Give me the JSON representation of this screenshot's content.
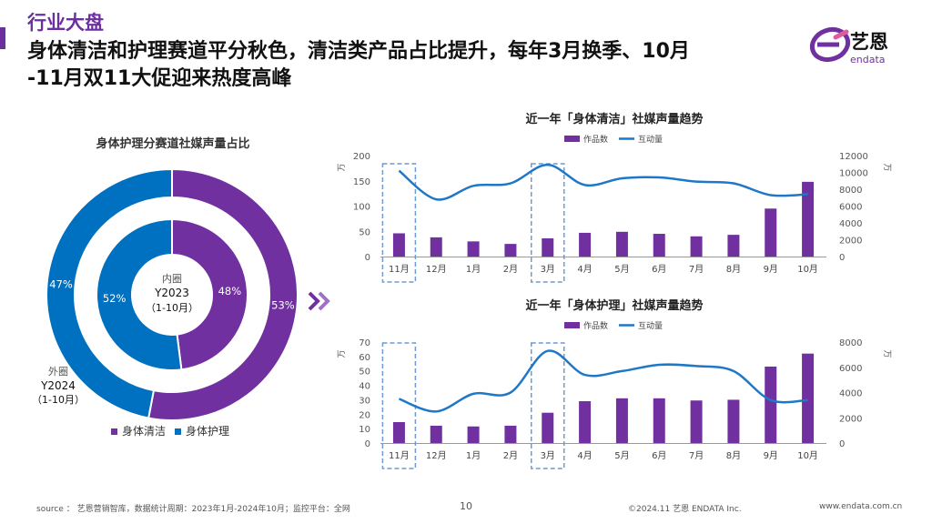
{
  "header": {
    "section_title": "行业大盘",
    "headline_line1": "身体清洁和护理赛道平分秋色，清洁类产品占比提升，每年3月换季、10月",
    "headline_line2": "-11月双11大促迎来热度高峰",
    "logo_text": "艺恩",
    "logo_subtext": "endata"
  },
  "donut": {
    "title": "身体护理分赛道社媒声量占比",
    "center_line1": "内圈",
    "center_line2": "Y2023",
    "center_line3": "（1-10月）",
    "outer_label_line1": "外圈",
    "outer_label_line2": "Y2024",
    "outer_label_line3": "（1-10月）",
    "legend": [
      {
        "label": "身体清洁",
        "color": "#7030a0"
      },
      {
        "label": "身体护理",
        "color": "#0070c0"
      }
    ]
  },
  "chart_data": [
    {
      "type": "pie",
      "ring": "outer",
      "period": "Y2024（1-10月）",
      "slices": [
        {
          "name": "身体清洁",
          "value": 53,
          "label": "53%",
          "color": "#7030a0"
        },
        {
          "name": "身体护理",
          "value": 47,
          "label": "47%",
          "color": "#0070c0"
        }
      ]
    },
    {
      "type": "pie",
      "ring": "inner",
      "period": "Y2023（1-10月）",
      "slices": [
        {
          "name": "身体清洁",
          "value": 48,
          "label": "48%",
          "color": "#7030a0"
        },
        {
          "name": "身体护理",
          "value": 52,
          "label": "52%",
          "color": "#0070c0"
        }
      ]
    },
    {
      "type": "bar",
      "title": "近一年「身体清洁」社媒声量趋势",
      "categories": [
        "11月",
        "12月",
        "1月",
        "2月",
        "3月",
        "4月",
        "5月",
        "6月",
        "7月",
        "8月",
        "9月",
        "10月"
      ],
      "left_unit": "万",
      "right_unit": "万",
      "left_ticks": [
        0,
        50,
        100,
        150,
        200
      ],
      "right_ticks": [
        0,
        2000,
        4000,
        6000,
        8000,
        10000,
        12000
      ],
      "ylim_left": [
        0,
        200
      ],
      "ylim_right": [
        0,
        12000
      ],
      "series": [
        {
          "name": "作品数",
          "type": "bar",
          "axis": "left",
          "color": "#7030a0",
          "values": [
            46,
            38,
            30,
            25,
            36,
            47,
            49,
            45,
            40,
            43,
            95,
            148
          ]
        },
        {
          "name": "互动量",
          "type": "line",
          "axis": "right",
          "color": "#1f77c8",
          "values": [
            10200,
            6800,
            8400,
            8700,
            10900,
            8500,
            9300,
            9400,
            8900,
            8700,
            7300,
            7400
          ]
        }
      ],
      "highlight_categories": [
        "11月",
        "3月"
      ],
      "legend_position": "top"
    },
    {
      "type": "bar",
      "title": "近一年「身体护理」社媒声量趋势",
      "categories": [
        "11月",
        "12月",
        "1月",
        "2月",
        "3月",
        "4月",
        "5月",
        "6月",
        "7月",
        "8月",
        "9月",
        "10月"
      ],
      "left_unit": "万",
      "right_unit": "万",
      "left_ticks": [
        0,
        10,
        20,
        30,
        40,
        50,
        60,
        70
      ],
      "right_ticks": [
        0,
        2000,
        4000,
        6000,
        8000
      ],
      "ylim_left": [
        0,
        70
      ],
      "ylim_right": [
        0,
        8000
      ],
      "series": [
        {
          "name": "作品数",
          "type": "bar",
          "axis": "left",
          "color": "#7030a0",
          "values": [
            14.5,
            12,
            11.5,
            12,
            21,
            29,
            31,
            31,
            29.5,
            30,
            53,
            62
          ]
        },
        {
          "name": "互动量",
          "type": "line",
          "axis": "right",
          "color": "#1f77c8",
          "values": [
            3500,
            2500,
            3900,
            4000,
            7300,
            5400,
            5700,
            6200,
            6100,
            5700,
            3400,
            3400
          ]
        }
      ],
      "highlight_categories": [
        "11月",
        "3月"
      ],
      "legend_position": "top"
    }
  ],
  "footer": {
    "source": "source ： 艺恩营销智库，数据统计周期：2023年1月-2024年10月；监控平台：全网",
    "page_number": "10",
    "copyright": "©2024.11  艺恩  ENDATA Inc.",
    "website": "www.endata.com.cn"
  }
}
